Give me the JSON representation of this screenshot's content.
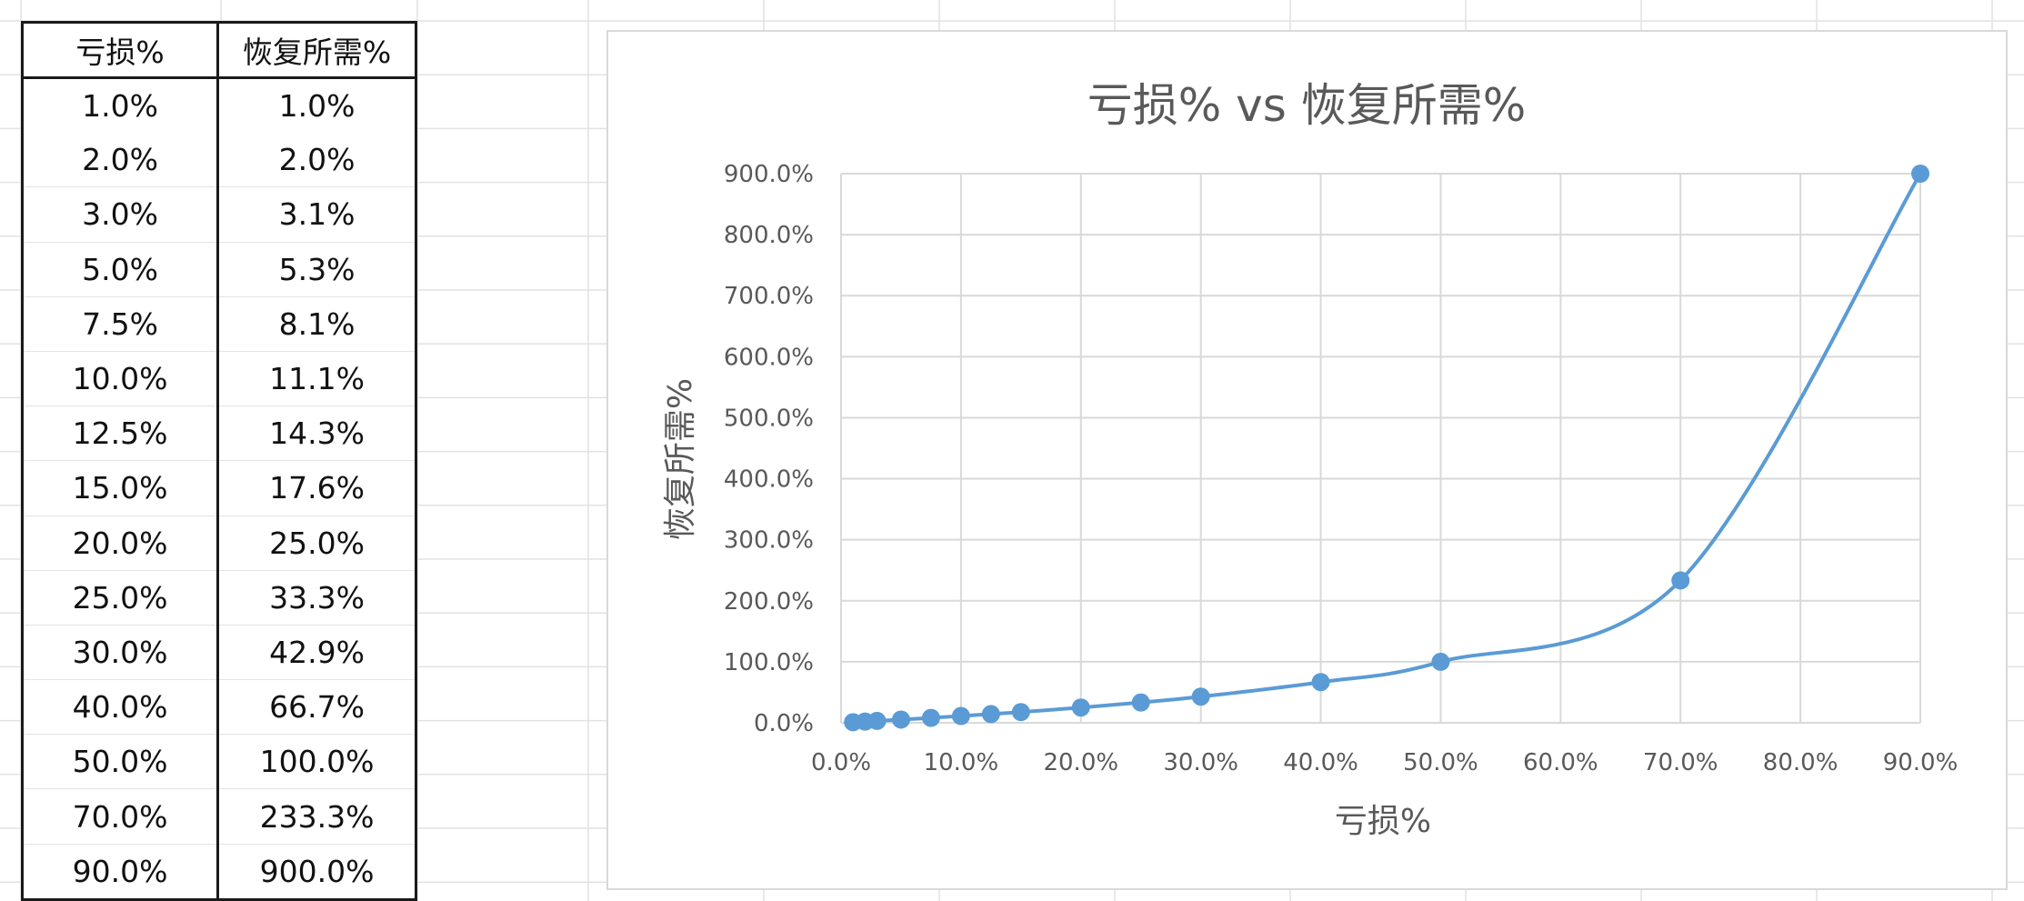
{
  "table": {
    "headers": [
      "亏损%",
      "恢复所需%"
    ],
    "rows": [
      [
        "1.0%",
        "1.0%"
      ],
      [
        "2.0%",
        "2.0%"
      ],
      [
        "3.0%",
        "3.1%"
      ],
      [
        "5.0%",
        "5.3%"
      ],
      [
        "7.5%",
        "8.1%"
      ],
      [
        "10.0%",
        "11.1%"
      ],
      [
        "12.5%",
        "14.3%"
      ],
      [
        "15.0%",
        "17.6%"
      ],
      [
        "20.0%",
        "25.0%"
      ],
      [
        "25.0%",
        "33.3%"
      ],
      [
        "30.0%",
        "42.9%"
      ],
      [
        "40.0%",
        "66.7%"
      ],
      [
        "50.0%",
        "100.0%"
      ],
      [
        "70.0%",
        "233.3%"
      ],
      [
        "90.0%",
        "900.0%"
      ]
    ]
  },
  "chart_data": {
    "type": "scatter",
    "title": "亏损% vs 恢复所需%",
    "xlabel": "亏损%",
    "ylabel": "恢复所需%",
    "xlim": [
      0,
      90
    ],
    "ylim": [
      0,
      900
    ],
    "x_ticks": [
      "0.0%",
      "10.0%",
      "20.0%",
      "30.0%",
      "40.0%",
      "50.0%",
      "60.0%",
      "70.0%",
      "80.0%",
      "90.0%"
    ],
    "y_ticks": [
      "0.0%",
      "100.0%",
      "200.0%",
      "300.0%",
      "400.0%",
      "500.0%",
      "600.0%",
      "700.0%",
      "800.0%",
      "900.0%"
    ],
    "grid": true,
    "smooth_line": true,
    "series": [
      {
        "x": [
          1.0,
          2.0,
          3.0,
          5.0,
          7.5,
          10.0,
          12.5,
          15.0,
          20.0,
          25.0,
          30.0,
          40.0,
          50.0,
          70.0,
          90.0
        ],
        "y": [
          1.0,
          2.0,
          3.1,
          5.3,
          8.1,
          11.1,
          14.3,
          17.6,
          25.0,
          33.3,
          42.9,
          66.7,
          100.0,
          233.3,
          900.0
        ],
        "color": "#5b9bd5"
      }
    ]
  }
}
